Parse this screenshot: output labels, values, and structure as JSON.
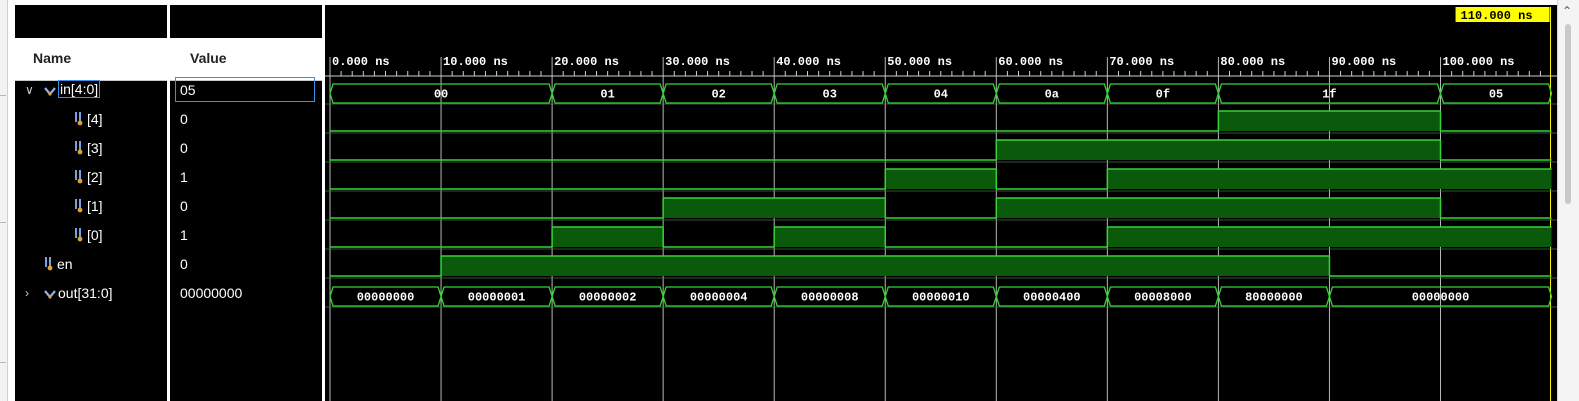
{
  "window": {
    "columns": {
      "name_header": "Name",
      "value_header": "Value"
    }
  },
  "cursor": {
    "label": "110.000 ns",
    "time_ns": 110
  },
  "timeline": {
    "range_ns": [
      0,
      110
    ],
    "ticks": [
      {
        "t": 0,
        "label": "0.000 ns"
      },
      {
        "t": 10,
        "label": "10.000 ns"
      },
      {
        "t": 20,
        "label": "20.000 ns"
      },
      {
        "t": 30,
        "label": "30.000 ns"
      },
      {
        "t": 40,
        "label": "40.000 ns"
      },
      {
        "t": 50,
        "label": "50.000 ns"
      },
      {
        "t": 60,
        "label": "60.000 ns"
      },
      {
        "t": 70,
        "label": "70.000 ns"
      },
      {
        "t": 80,
        "label": "80.000 ns"
      },
      {
        "t": 90,
        "label": "90.000 ns"
      },
      {
        "t": 100,
        "label": "100.000 ns"
      }
    ]
  },
  "colors": {
    "wave": "#36d136",
    "fill": "#0b5a0b",
    "grid": "#4a7a4a",
    "cursor_bg": "#ffff00",
    "cursor_line": "#ffff00"
  },
  "signals": [
    {
      "id": "in",
      "name": "in[4:0]",
      "value": "05",
      "kind": "bus",
      "expander": "expanded",
      "selected": true,
      "indent": 0,
      "segments": [
        {
          "from": 0,
          "to": 20,
          "v": "00"
        },
        {
          "from": 20,
          "to": 30,
          "v": "01"
        },
        {
          "from": 30,
          "to": 40,
          "v": "02"
        },
        {
          "from": 40,
          "to": 50,
          "v": "03"
        },
        {
          "from": 50,
          "to": 60,
          "v": "04"
        },
        {
          "from": 60,
          "to": 70,
          "v": "0a"
        },
        {
          "from": 70,
          "to": 80,
          "v": "0f"
        },
        {
          "from": 80,
          "to": 100,
          "v": "1f"
        },
        {
          "from": 100,
          "to": 110,
          "v": "05"
        }
      ]
    },
    {
      "id": "in4",
      "name": "[4]",
      "value": "0",
      "kind": "bit",
      "indent": 1,
      "segments": [
        {
          "from": 0,
          "to": 80,
          "v": 0
        },
        {
          "from": 80,
          "to": 100,
          "v": 1
        },
        {
          "from": 100,
          "to": 110,
          "v": 0
        }
      ]
    },
    {
      "id": "in3",
      "name": "[3]",
      "value": "0",
      "kind": "bit",
      "indent": 1,
      "segments": [
        {
          "from": 0,
          "to": 60,
          "v": 0
        },
        {
          "from": 60,
          "to": 100,
          "v": 1
        },
        {
          "from": 100,
          "to": 110,
          "v": 0
        }
      ]
    },
    {
      "id": "in2",
      "name": "[2]",
      "value": "1",
      "kind": "bit",
      "indent": 1,
      "segments": [
        {
          "from": 0,
          "to": 50,
          "v": 0
        },
        {
          "from": 50,
          "to": 60,
          "v": 1
        },
        {
          "from": 60,
          "to": 70,
          "v": 0
        },
        {
          "from": 70,
          "to": 110,
          "v": 1
        }
      ]
    },
    {
      "id": "in1",
      "name": "[1]",
      "value": "0",
      "kind": "bit",
      "indent": 1,
      "segments": [
        {
          "from": 0,
          "to": 30,
          "v": 0
        },
        {
          "from": 30,
          "to": 50,
          "v": 1
        },
        {
          "from": 50,
          "to": 60,
          "v": 0
        },
        {
          "from": 60,
          "to": 100,
          "v": 1
        },
        {
          "from": 100,
          "to": 110,
          "v": 0
        }
      ]
    },
    {
      "id": "in0",
      "name": "[0]",
      "value": "1",
      "kind": "bit",
      "indent": 1,
      "segments": [
        {
          "from": 0,
          "to": 20,
          "v": 0
        },
        {
          "from": 20,
          "to": 30,
          "v": 1
        },
        {
          "from": 30,
          "to": 40,
          "v": 0
        },
        {
          "from": 40,
          "to": 50,
          "v": 1
        },
        {
          "from": 50,
          "to": 70,
          "v": 0
        },
        {
          "from": 70,
          "to": 110,
          "v": 1
        }
      ]
    },
    {
      "id": "en",
      "name": "en",
      "value": "0",
      "kind": "bit",
      "indent": 0,
      "segments": [
        {
          "from": 0,
          "to": 10,
          "v": 0
        },
        {
          "from": 10,
          "to": 90,
          "v": 1
        },
        {
          "from": 90,
          "to": 110,
          "v": 0
        }
      ]
    },
    {
      "id": "out",
      "name": "out[31:0]",
      "value": "00000000",
      "kind": "bus",
      "expander": "collapsed",
      "indent": 0,
      "segments": [
        {
          "from": 0,
          "to": 10,
          "v": "00000000"
        },
        {
          "from": 10,
          "to": 20,
          "v": "00000001"
        },
        {
          "from": 20,
          "to": 30,
          "v": "00000002"
        },
        {
          "from": 30,
          "to": 40,
          "v": "00000004"
        },
        {
          "from": 40,
          "to": 50,
          "v": "00000008"
        },
        {
          "from": 50,
          "to": 60,
          "v": "00000010"
        },
        {
          "from": 60,
          "to": 70,
          "v": "00000400"
        },
        {
          "from": 70,
          "to": 80,
          "v": "00008000"
        },
        {
          "from": 80,
          "to": 90,
          "v": "80000000"
        },
        {
          "from": 90,
          "to": 110,
          "v": "00000000"
        }
      ]
    }
  ]
}
